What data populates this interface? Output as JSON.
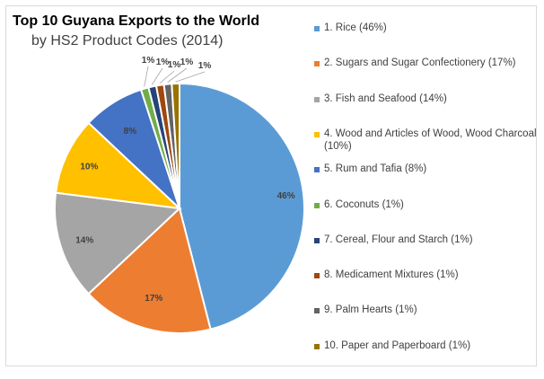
{
  "chart_data": {
    "type": "pie",
    "title": "Top 10 Guyana Exports to the World",
    "subtitle": "by HS2 Product Codes (2014)",
    "slices": [
      {
        "label": "1. Rice (46%)",
        "value": 46,
        "data_label": "46%",
        "color": "#5b9bd5"
      },
      {
        "label": "2. Sugars and Sugar Confectionery (17%)",
        "value": 17,
        "data_label": "17%",
        "color": "#ed7d31"
      },
      {
        "label": "3. Fish and Seafood (14%)",
        "value": 14,
        "data_label": "14%",
        "color": "#a5a5a5"
      },
      {
        "label": "4. Wood and Articles of Wood, Wood Charcoal (10%)",
        "value": 10,
        "data_label": "10%",
        "color": "#ffc000"
      },
      {
        "label": "5. Rum and Tafia (8%)",
        "value": 8,
        "data_label": "8%",
        "color": "#4472c4"
      },
      {
        "label": "6. Coconuts (1%)",
        "value": 1,
        "data_label": "1%",
        "color": "#70ad47"
      },
      {
        "label": "7. Cereal, Flour and Starch (1%)",
        "value": 1,
        "data_label": "1%",
        "color": "#264478"
      },
      {
        "label": "8. Medicament Mixtures (1%)",
        "value": 1,
        "data_label": "1%",
        "color": "#9e480e"
      },
      {
        "label": "9. Palm Hearts (1%)",
        "value": 1,
        "data_label": "1%",
        "color": "#636363"
      },
      {
        "label": "10. Paper and Paperboard (1%)",
        "value": 1,
        "data_label": "1%",
        "color": "#997300"
      }
    ],
    "legend_position": "right"
  }
}
